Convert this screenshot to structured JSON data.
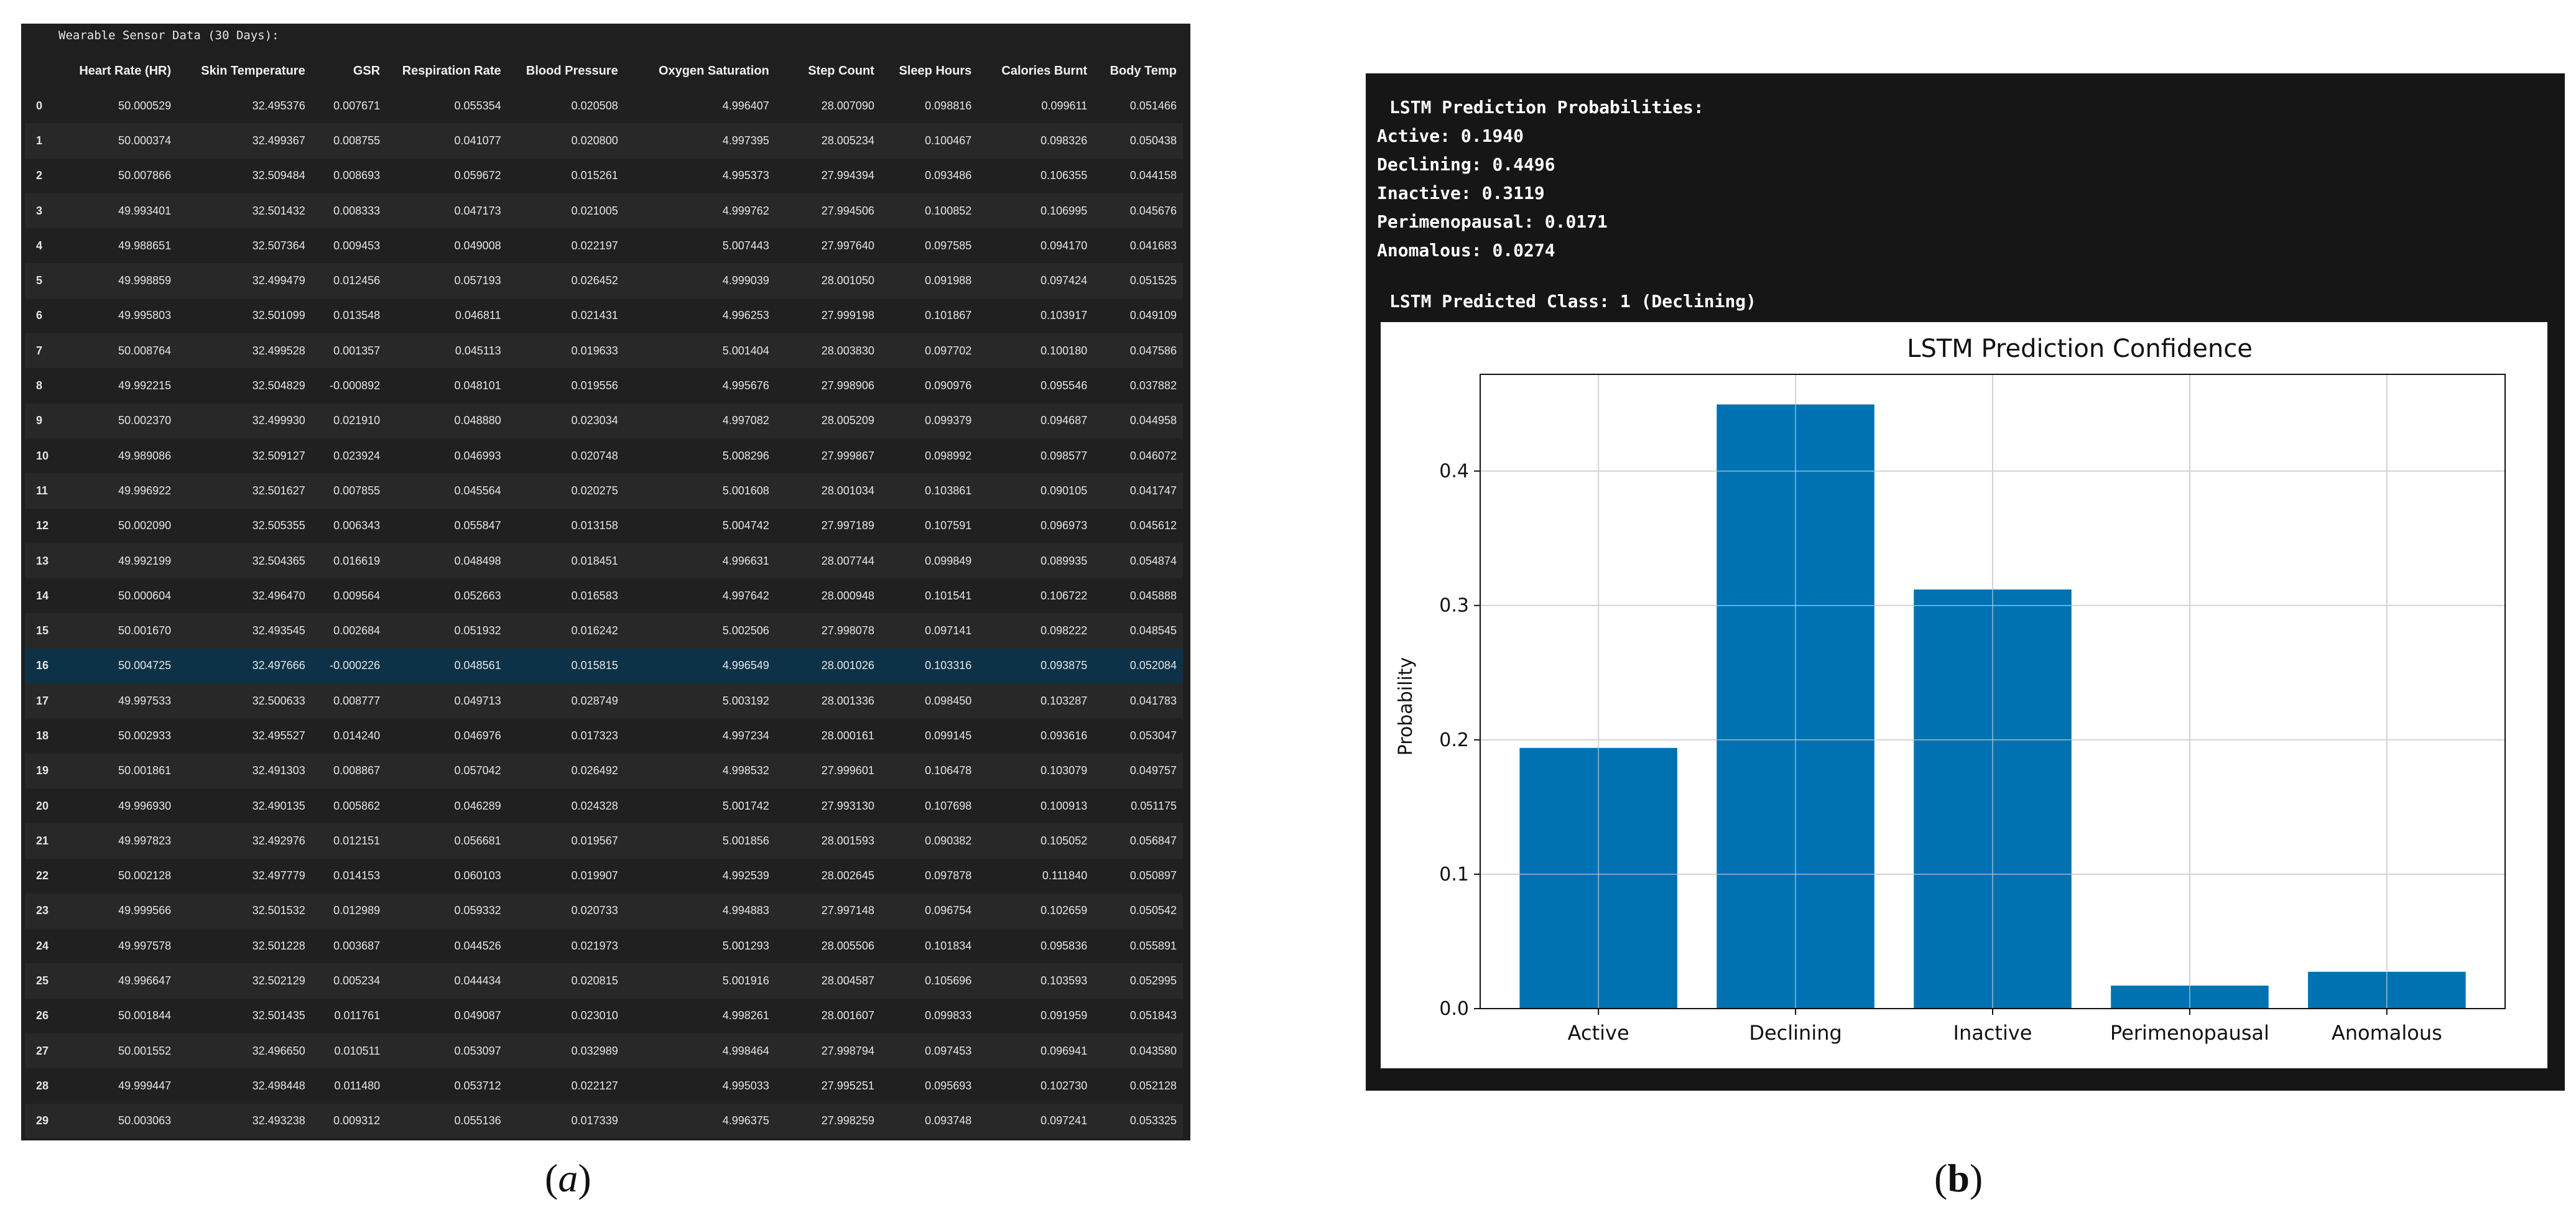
{
  "table": {
    "title": "Wearable Sensor Data (30 Days):",
    "columns": [
      "Heart Rate (HR)",
      "Skin Temperature",
      "GSR",
      "Respiration Rate",
      "Blood Pressure",
      "Oxygen Saturation",
      "Step Count",
      "Sleep Hours",
      "Calories Burnt",
      "Body Temp"
    ],
    "highlighted_row": 16,
    "rows": [
      [
        "0",
        "50.000529",
        "32.495376",
        "0.007671",
        "0.055354",
        "0.020508",
        "4.996407",
        "28.007090",
        "0.098816",
        "0.099611",
        "0.051466"
      ],
      [
        "1",
        "50.000374",
        "32.499367",
        "0.008755",
        "0.041077",
        "0.020800",
        "4.997395",
        "28.005234",
        "0.100467",
        "0.098326",
        "0.050438"
      ],
      [
        "2",
        "50.007866",
        "32.509484",
        "0.008693",
        "0.059672",
        "0.015261",
        "4.995373",
        "27.994394",
        "0.093486",
        "0.106355",
        "0.044158"
      ],
      [
        "3",
        "49.993401",
        "32.501432",
        "0.008333",
        "0.047173",
        "0.021005",
        "4.999762",
        "27.994506",
        "0.100852",
        "0.106995",
        "0.045676"
      ],
      [
        "4",
        "49.988651",
        "32.507364",
        "0.009453",
        "0.049008",
        "0.022197",
        "5.007443",
        "27.997640",
        "0.097585",
        "0.094170",
        "0.041683"
      ],
      [
        "5",
        "49.998859",
        "32.499479",
        "0.012456",
        "0.057193",
        "0.026452",
        "4.999039",
        "28.001050",
        "0.091988",
        "0.097424",
        "0.051525"
      ],
      [
        "6",
        "49.995803",
        "32.501099",
        "0.013548",
        "0.046811",
        "0.021431",
        "4.996253",
        "27.999198",
        "0.101867",
        "0.103917",
        "0.049109"
      ],
      [
        "7",
        "50.008764",
        "32.499528",
        "0.001357",
        "0.045113",
        "0.019633",
        "5.001404",
        "28.003830",
        "0.097702",
        "0.100180",
        "0.047586"
      ],
      [
        "8",
        "49.992215",
        "32.504829",
        "-0.000892",
        "0.048101",
        "0.019556",
        "4.995676",
        "27.998906",
        "0.090976",
        "0.095546",
        "0.037882"
      ],
      [
        "9",
        "50.002370",
        "32.499930",
        "0.021910",
        "0.048880",
        "0.023034",
        "4.997082",
        "28.005209",
        "0.099379",
        "0.094687",
        "0.044958"
      ],
      [
        "10",
        "49.989086",
        "32.509127",
        "0.023924",
        "0.046993",
        "0.020748",
        "5.008296",
        "27.999867",
        "0.098992",
        "0.098577",
        "0.046072"
      ],
      [
        "11",
        "49.996922",
        "32.501627",
        "0.007855",
        "0.045564",
        "0.020275",
        "5.001608",
        "28.001034",
        "0.103861",
        "0.090105",
        "0.041747"
      ],
      [
        "12",
        "50.002090",
        "32.505355",
        "0.006343",
        "0.055847",
        "0.013158",
        "5.004742",
        "27.997189",
        "0.107591",
        "0.096973",
        "0.045612"
      ],
      [
        "13",
        "49.992199",
        "32.504365",
        "0.016619",
        "0.048498",
        "0.018451",
        "4.996631",
        "28.007744",
        "0.099849",
        "0.089935",
        "0.054874"
      ],
      [
        "14",
        "50.000604",
        "32.496470",
        "0.009564",
        "0.052663",
        "0.016583",
        "4.997642",
        "28.000948",
        "0.101541",
        "0.106722",
        "0.045888"
      ],
      [
        "15",
        "50.001670",
        "32.493545",
        "0.002684",
        "0.051932",
        "0.016242",
        "5.002506",
        "27.998078",
        "0.097141",
        "0.098222",
        "0.048545"
      ],
      [
        "16",
        "50.004725",
        "32.497666",
        "-0.000226",
        "0.048561",
        "0.015815",
        "4.996549",
        "28.001026",
        "0.103316",
        "0.093875",
        "0.052084"
      ],
      [
        "17",
        "49.997533",
        "32.500633",
        "0.008777",
        "0.049713",
        "0.028749",
        "5.003192",
        "28.001336",
        "0.098450",
        "0.103287",
        "0.041783"
      ],
      [
        "18",
        "50.002933",
        "32.495527",
        "0.014240",
        "0.046976",
        "0.017323",
        "4.997234",
        "28.000161",
        "0.099145",
        "0.093616",
        "0.053047"
      ],
      [
        "19",
        "50.001861",
        "32.491303",
        "0.008867",
        "0.057042",
        "0.026492",
        "4.998532",
        "27.999601",
        "0.106478",
        "0.103079",
        "0.049757"
      ],
      [
        "20",
        "49.996930",
        "32.490135",
        "0.005862",
        "0.046289",
        "0.024328",
        "5.001742",
        "27.993130",
        "0.107698",
        "0.100913",
        "0.051175"
      ],
      [
        "21",
        "49.997823",
        "32.492976",
        "0.012151",
        "0.056681",
        "0.019567",
        "5.001856",
        "28.001593",
        "0.090382",
        "0.105052",
        "0.056847"
      ],
      [
        "22",
        "50.002128",
        "32.497779",
        "0.014153",
        "0.060103",
        "0.019907",
        "4.992539",
        "28.002645",
        "0.097878",
        "0.111840",
        "0.050897"
      ],
      [
        "23",
        "49.999566",
        "32.501532",
        "0.012989",
        "0.059332",
        "0.020733",
        "4.994883",
        "27.997148",
        "0.096754",
        "0.102659",
        "0.050542"
      ],
      [
        "24",
        "49.997578",
        "32.501228",
        "0.003687",
        "0.044526",
        "0.021973",
        "5.001293",
        "28.005506",
        "0.101834",
        "0.095836",
        "0.055891"
      ],
      [
        "25",
        "49.996647",
        "32.502129",
        "0.005234",
        "0.044434",
        "0.020815",
        "5.001916",
        "28.004587",
        "0.105696",
        "0.103593",
        "0.052995"
      ],
      [
        "26",
        "50.001844",
        "32.501435",
        "0.011761",
        "0.049087",
        "0.023010",
        "4.998261",
        "28.001607",
        "0.099833",
        "0.091959",
        "0.051843"
      ],
      [
        "27",
        "50.001552",
        "32.496650",
        "0.010511",
        "0.053097",
        "0.032989",
        "4.998464",
        "27.998794",
        "0.097453",
        "0.096941",
        "0.043580"
      ],
      [
        "28",
        "49.999447",
        "32.498448",
        "0.011480",
        "0.053712",
        "0.022127",
        "4.995033",
        "27.995251",
        "0.095693",
        "0.102730",
        "0.052128"
      ],
      [
        "29",
        "50.003063",
        "32.493238",
        "0.009312",
        "0.055136",
        "0.017339",
        "4.996375",
        "27.998259",
        "0.093748",
        "0.097241",
        "0.053325"
      ]
    ]
  },
  "output": {
    "prob_header": "LSTM Prediction Probabilities:",
    "probabilities": [
      {
        "label": "Active",
        "value": "0.1940"
      },
      {
        "label": "Declining",
        "value": "0.4496"
      },
      {
        "label": "Inactive",
        "value": "0.3119"
      },
      {
        "label": "Perimenopausal",
        "value": "0.0171"
      },
      {
        "label": "Anomalous",
        "value": "0.0274"
      }
    ],
    "predicted_line": "LSTM Predicted Class: 1 (Declining)"
  },
  "chart_data": {
    "type": "bar",
    "title": "LSTM Prediction Confidence",
    "xlabel": "",
    "ylabel": "Probability",
    "categories": [
      "Active",
      "Declining",
      "Inactive",
      "Perimenopausal",
      "Anomalous"
    ],
    "values": [
      0.194,
      0.4496,
      0.3119,
      0.0171,
      0.0274
    ],
    "ylim": [
      0,
      0.472
    ],
    "yticks": [
      "0.0",
      "0.1",
      "0.2",
      "0.3",
      "0.4"
    ],
    "bar_color": "#0072b2",
    "grid": true
  },
  "captions": {
    "a": "a",
    "b": "b"
  }
}
